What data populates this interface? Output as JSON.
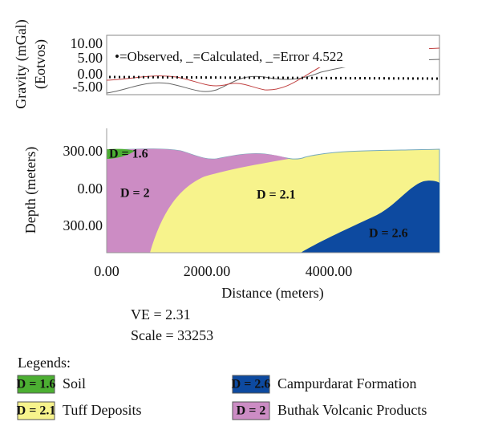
{
  "gravity_panel": {
    "y_label": "Gravity (mGal)",
    "y_label_2": "(Eotvos)",
    "legend": "•=Observed, _=Calculated, _=Error 4.522",
    "yticks": [
      "10.00",
      "5.00",
      "0.00",
      "-5.00"
    ]
  },
  "model_panel": {
    "y_label": "Depth (meters)",
    "x_label": "Distance (meters)",
    "yticks": [
      "300.00",
      "0.00",
      "300.00"
    ],
    "xticks": [
      "0.00",
      "2000.00",
      "4000.00"
    ],
    "regions": [
      "D = 1.6",
      "D = 2",
      "D = 2.1",
      "D = 2.6"
    ]
  },
  "ve": "VE = 2.31",
  "scale": "Scale = 33253",
  "legends": {
    "title": "Legends:",
    "items": [
      {
        "label": "D = 1.6",
        "name": "Soil",
        "color": "#4caf32"
      },
      {
        "label": "D = 2.6",
        "name": "Campurdarat Formation",
        "color": "#0d4aa0"
      },
      {
        "label": "D = 2.1",
        "name": "Tuff Deposits",
        "color": "#f7f38c"
      },
      {
        "label": "D = 2",
        "name": "Buthak Volcanic Products",
        "color": "#cc8cc4"
      }
    ]
  }
}
